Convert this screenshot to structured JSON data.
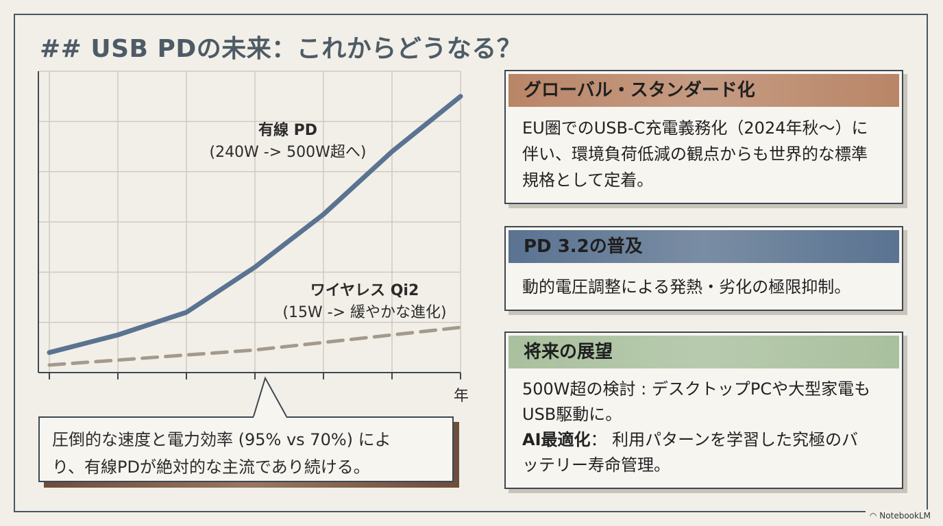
{
  "title": "## USB PDの未来：これからどうなる？",
  "chart_data": {
    "type": "line",
    "xlabel": "年",
    "series": [
      {
        "name": "有線 PD",
        "style": "solid",
        "color": "#5a7391",
        "points": [
          [
            0,
            0.08
          ],
          [
            1,
            0.15
          ],
          [
            2,
            0.24
          ],
          [
            3,
            0.42
          ],
          [
            4,
            0.63
          ],
          [
            5,
            0.88
          ],
          [
            6,
            1.1
          ]
        ]
      },
      {
        "name": "ワイヤレス Qi2",
        "style": "dashed",
        "color": "#a39a8c",
        "points": [
          [
            0,
            0.03
          ],
          [
            1,
            0.05
          ],
          [
            2,
            0.07
          ],
          [
            3,
            0.09
          ],
          [
            4,
            0.12
          ],
          [
            5,
            0.15
          ],
          [
            6,
            0.18
          ]
        ]
      }
    ],
    "annotations": [
      {
        "title": "有線 PD",
        "note": "(240W -> 500W超へ)"
      },
      {
        "title": "ワイヤレス Qi2",
        "note": "(15W -> 緩やかな進化)"
      }
    ],
    "grid": true
  },
  "callout": {
    "line1": "圧倒的な速度と電力効率 (95% vs 70%) によ",
    "line2": "り、有線PDが絶対的な主流であり続ける。"
  },
  "cards": [
    {
      "title": "グローバル・スタンダード化",
      "color": "#b98567",
      "lines": [
        "EU圏でのUSB-C充電義務化（2024年秋〜）に",
        "伴い、環境負荷低減の観点からも世界的な標準",
        "規格として定着。"
      ]
    },
    {
      "title": "PD 3.2の普及",
      "color": "#5a7391",
      "lines": [
        "動的電圧調整による発熱・劣化の極限抑制。"
      ]
    },
    {
      "title": "将来の展望",
      "color": "#a9c09e",
      "item1": "500W超の検討 : デスクトップPCや大型家電も",
      "item1b": "USB駆動に。",
      "item2_bold": "AI最適化",
      "item2": "：  利用パターンを学習した究極のバ",
      "item2b": "ッテリー寿命管理。"
    }
  ],
  "brand": "NotebookLM"
}
